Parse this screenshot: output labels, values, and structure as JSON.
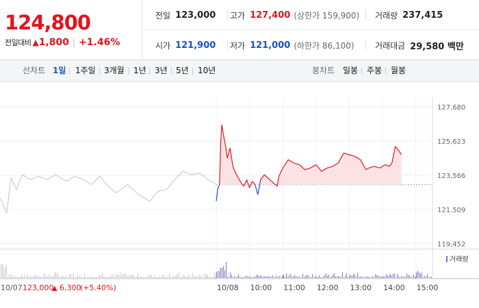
{
  "quote": {
    "price": "124,800",
    "change_label": "전일대비",
    "change_arrow": "▲",
    "change": "1,800",
    "change_rate": "+1.46%",
    "prev_close_label": "전일",
    "prev_close": "123,000",
    "high_label": "고가",
    "high": "127,400",
    "upper_limit": "(상한가 159,900)",
    "volume_label": "거래량",
    "volume": "237,415",
    "open_label": "시가",
    "open": "121,900",
    "low_label": "저가",
    "low": "121,000",
    "lower_limit": "(하한가 86,100)",
    "trade_value_label": "거래대금",
    "trade_value": "29,580 백만",
    "colors": {
      "up": "#e2141c",
      "down": "#1a4fc4"
    }
  },
  "toolbar": {
    "line_label": "선차트",
    "line_periods": [
      "1일",
      "1주일",
      "3개월",
      "1년",
      "3년",
      "5년",
      "10년"
    ],
    "active_period": "1일",
    "candle_label": "봉차트",
    "candle_periods": [
      "일봉",
      "주봉",
      "월봉"
    ]
  },
  "chart_data": {
    "type": "line",
    "y_ticks": [
      "127,680",
      "125,623",
      "123,566",
      "121,509",
      "119,452"
    ],
    "ylim": [
      119452,
      127680
    ],
    "baseline": 123000,
    "x_tick_labels": [
      "10/08",
      "10:00",
      "11:00",
      "12:00",
      "13:00",
      "14:00",
      "15:00"
    ],
    "x_ticks_minutes": [
      0,
      60,
      120,
      180,
      240,
      300,
      360
    ],
    "volume_legend": "거래량",
    "prev_day_caption": {
      "date": "10/07",
      "close": "123,000",
      "arrow": "▲",
      "change": "6,300",
      "rate": "(+5.40%)"
    },
    "series": [
      {
        "session": "10/07",
        "points": [
          [
            0,
            122200
          ],
          [
            12,
            121300
          ],
          [
            20,
            123400
          ],
          [
            30,
            122700
          ],
          [
            40,
            123600
          ],
          [
            55,
            123300
          ],
          [
            70,
            123500
          ],
          [
            85,
            123300
          ],
          [
            100,
            123600
          ],
          [
            120,
            123200
          ],
          [
            135,
            123500
          ],
          [
            150,
            123300
          ],
          [
            165,
            123000
          ],
          [
            180,
            123500
          ],
          [
            195,
            122900
          ],
          [
            210,
            122500
          ],
          [
            230,
            123000
          ],
          [
            250,
            122400
          ],
          [
            270,
            122000
          ],
          [
            285,
            122600
          ],
          [
            300,
            122700
          ],
          [
            315,
            123300
          ],
          [
            330,
            123800
          ],
          [
            345,
            123600
          ],
          [
            360,
            123700
          ],
          [
            375,
            123300
          ],
          [
            390,
            123000
          ]
        ]
      },
      {
        "session": "10/08",
        "points": [
          [
            0,
            122000
          ],
          [
            3,
            122800
          ],
          [
            6,
            123000
          ],
          [
            8,
            125500
          ],
          [
            10,
            126600
          ],
          [
            13,
            126000
          ],
          [
            17,
            125300
          ],
          [
            20,
            124600
          ],
          [
            25,
            125200
          ],
          [
            30,
            124100
          ],
          [
            35,
            123700
          ],
          [
            40,
            123400
          ],
          [
            45,
            123100
          ],
          [
            50,
            122900
          ],
          [
            55,
            123300
          ],
          [
            60,
            122800
          ],
          [
            65,
            123200
          ],
          [
            70,
            123000
          ],
          [
            75,
            122400
          ],
          [
            80,
            123300
          ],
          [
            87,
            123600
          ],
          [
            93,
            123400
          ],
          [
            100,
            123200
          ],
          [
            110,
            122900
          ],
          [
            113,
            123500
          ],
          [
            120,
            124000
          ],
          [
            130,
            124500
          ],
          [
            140,
            124300
          ],
          [
            150,
            124200
          ],
          [
            160,
            123900
          ],
          [
            170,
            124000
          ],
          [
            180,
            124200
          ],
          [
            190,
            123800
          ],
          [
            200,
            124000
          ],
          [
            210,
            124100
          ],
          [
            220,
            124300
          ],
          [
            230,
            124900
          ],
          [
            240,
            124800
          ],
          [
            250,
            124700
          ],
          [
            260,
            124500
          ],
          [
            270,
            123900
          ],
          [
            275,
            124000
          ],
          [
            285,
            124100
          ],
          [
            295,
            124000
          ],
          [
            305,
            124200
          ],
          [
            312,
            124100
          ],
          [
            317,
            124300
          ],
          [
            323,
            125300
          ],
          [
            330,
            125000
          ],
          [
            334,
            124800
          ]
        ]
      }
    ]
  }
}
